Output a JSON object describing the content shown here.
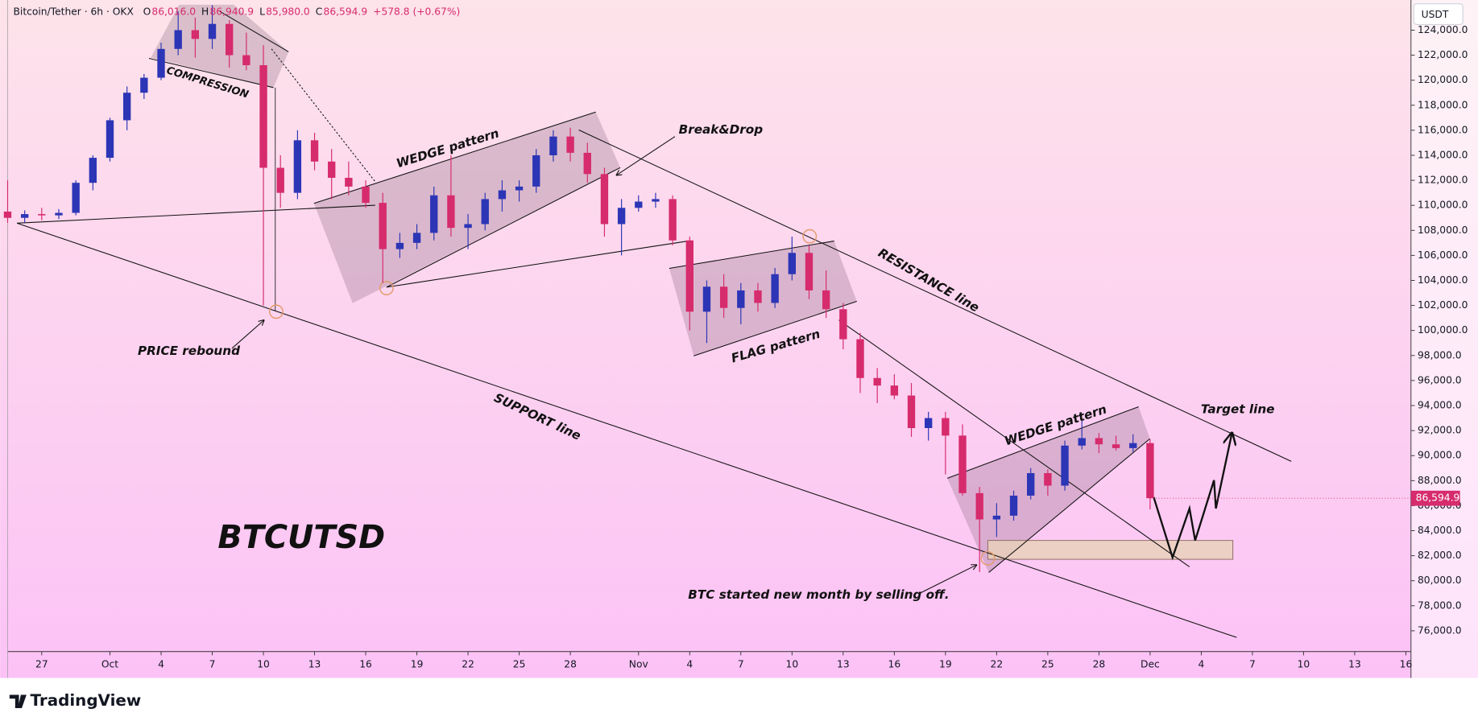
{
  "chart_data": {
    "type": "candlestick",
    "header": {
      "symbol": "Bitcoin/Tether · 6h · OKX",
      "fields": [
        {
          "key": "O",
          "value": "86,016.0"
        },
        {
          "key": "H",
          "value": "86,940.9"
        },
        {
          "key": "L",
          "value": "85,980.0"
        },
        {
          "key": "C",
          "value": "86,594.9"
        }
      ],
      "change": "+578.8 (+0.67%)"
    },
    "currency": "USDT",
    "brand": "TradingView",
    "up_color": "#2c35b6",
    "down_color": "#d62b6c",
    "grid": false,
    "x": [
      -2,
      -1,
      0,
      1,
      2,
      3,
      4,
      5,
      6,
      7,
      8,
      9,
      10,
      11,
      12,
      13,
      14,
      15,
      16,
      17,
      18,
      19,
      20,
      21,
      22,
      23,
      24,
      25,
      26,
      27,
      28,
      29,
      30,
      31,
      32,
      33,
      34,
      35,
      36,
      37,
      38,
      39,
      40,
      41,
      42,
      43,
      44,
      45,
      46,
      47,
      48,
      49,
      50,
      51,
      52,
      53,
      54,
      55,
      56,
      57,
      58,
      59,
      60,
      61,
      62,
      63,
      64,
      65
    ],
    "open": [
      109500,
      109000,
      109300,
      109200,
      109400,
      111800,
      113800,
      116800,
      119000,
      120200,
      122500,
      124000,
      123300,
      124500,
      122000,
      121200,
      113000,
      111000,
      115200,
      113500,
      112200,
      111500,
      110200,
      106500,
      107000,
      107800,
      110800,
      108200,
      108500,
      110500,
      111200,
      111500,
      114000,
      115500,
      114200,
      112500,
      108500,
      109800,
      110300,
      110500,
      107200,
      101500,
      103500,
      101800,
      103200,
      102200,
      104500,
      106200,
      103200,
      101700,
      99300,
      96200,
      95600,
      94800,
      92200,
      93000,
      91600,
      87000,
      84900,
      85200,
      86800,
      88600,
      87600,
      90800,
      91400,
      90900,
      90600,
      91000
    ],
    "high": [
      112000,
      109600,
      109800,
      109700,
      112000,
      114000,
      117000,
      119500,
      120500,
      123000,
      125500,
      125000,
      126000,
      124800,
      123800,
      122800,
      114000,
      116000,
      115800,
      114500,
      113500,
      112000,
      111000,
      107800,
      108500,
      111500,
      114000,
      109300,
      111000,
      112000,
      112000,
      114500,
      116000,
      116200,
      115000,
      113000,
      110500,
      110800,
      111000,
      110800,
      107500,
      104000,
      104500,
      103800,
      103800,
      105000,
      107500,
      106800,
      104800,
      102200,
      99800,
      97000,
      96500,
      95800,
      93500,
      93500,
      92500,
      87500,
      86200,
      87200,
      89000,
      88900,
      91200,
      92800,
      91800,
      91600,
      91700,
      91300
    ],
    "low": [
      108600,
      108600,
      108800,
      108900,
      109200,
      111200,
      113500,
      116000,
      118500,
      120000,
      122000,
      121800,
      122500,
      121000,
      120800,
      102000,
      109800,
      110500,
      112800,
      110500,
      110800,
      109800,
      103800,
      105800,
      106500,
      107200,
      107500,
      106500,
      108000,
      109500,
      110300,
      111000,
      113500,
      113500,
      111800,
      107500,
      106000,
      109500,
      109800,
      106800,
      100000,
      99000,
      101000,
      100500,
      101500,
      101800,
      104000,
      102500,
      101000,
      98500,
      95000,
      94200,
      94500,
      91500,
      91200,
      88500,
      86800,
      80700,
      83500,
      84800,
      86500,
      86800,
      87200,
      90500,
      90200,
      90400,
      90300,
      85700
    ],
    "close": [
      109000,
      109300,
      109200,
      109400,
      111800,
      113800,
      116800,
      119000,
      120200,
      122500,
      124000,
      123300,
      124500,
      122000,
      121200,
      113000,
      111000,
      115200,
      113500,
      112200,
      111500,
      110200,
      106500,
      107000,
      107800,
      110800,
      108200,
      108500,
      110500,
      111200,
      111500,
      114000,
      115500,
      114200,
      112500,
      108500,
      109800,
      110300,
      110500,
      107200,
      101500,
      103500,
      101800,
      103200,
      102200,
      104500,
      106200,
      103200,
      101700,
      99300,
      96200,
      95600,
      94800,
      92200,
      93000,
      91600,
      87000,
      84900,
      85200,
      86800,
      88600,
      87600,
      90800,
      91400,
      90900,
      90600,
      91000,
      86594.9
    ],
    "last_price": {
      "value": 86594.9,
      "label": "86,594.9"
    },
    "xlim": [
      -2,
      80.3
    ],
    "xticks": [
      {
        "value": 0,
        "label": "27"
      },
      {
        "value": 4,
        "label": "Oct"
      },
      {
        "value": 7,
        "label": "4"
      },
      {
        "value": 10,
        "label": "7"
      },
      {
        "value": 13,
        "label": "10"
      },
      {
        "value": 16,
        "label": "13"
      },
      {
        "value": 19,
        "label": "16"
      },
      {
        "value": 22,
        "label": "19"
      },
      {
        "value": 25,
        "label": "22"
      },
      {
        "value": 28,
        "label": "25"
      },
      {
        "value": 31,
        "label": "28"
      },
      {
        "value": 35,
        "label": "Nov"
      },
      {
        "value": 38,
        "label": "4"
      },
      {
        "value": 41,
        "label": "7"
      },
      {
        "value": 44,
        "label": "10"
      },
      {
        "value": 47,
        "label": "13"
      },
      {
        "value": 50,
        "label": "16"
      },
      {
        "value": 53,
        "label": "19"
      },
      {
        "value": 56,
        "label": "22"
      },
      {
        "value": 59,
        "label": "25"
      },
      {
        "value": 62,
        "label": "28"
      },
      {
        "value": 65,
        "label": "Dec"
      },
      {
        "value": 68,
        "label": "4"
      },
      {
        "value": 71,
        "label": "7"
      },
      {
        "value": 74,
        "label": "10"
      },
      {
        "value": 77,
        "label": "13"
      },
      {
        "value": 80,
        "label": "16"
      }
    ],
    "ylim": [
      74340,
      126410
    ],
    "yticks": [
      {
        "value": 124000,
        "label": "124,000.0"
      },
      {
        "value": 122000,
        "label": "122,000.0"
      },
      {
        "value": 120000,
        "label": "120,000.0"
      },
      {
        "value": 118000,
        "label": "118,000.0"
      },
      {
        "value": 116000,
        "label": "116,000.0"
      },
      {
        "value": 114000,
        "label": "114,000.0"
      },
      {
        "value": 112000,
        "label": "112,000.0"
      },
      {
        "value": 110000,
        "label": "110,000.0"
      },
      {
        "value": 108000,
        "label": "108,000.0"
      },
      {
        "value": 106000,
        "label": "106,000.0"
      },
      {
        "value": 104000,
        "label": "104,000.0"
      },
      {
        "value": 102000,
        "label": "102,000.0"
      },
      {
        "value": 100000,
        "label": "100,000.0"
      },
      {
        "value": 98000,
        "label": "98,000.0"
      },
      {
        "value": 96000,
        "label": "96,000.0"
      },
      {
        "value": 94000,
        "label": "94,000.0"
      },
      {
        "value": 92000,
        "label": "92,000.0"
      },
      {
        "value": 90000,
        "label": "90,000.0"
      },
      {
        "value": 88000,
        "label": "88,000.0"
      },
      {
        "value": 86000,
        "label": "86,000.0"
      },
      {
        "value": 84000,
        "label": "84,000.0"
      },
      {
        "value": 82000,
        "label": "82,000.0"
      },
      {
        "value": 80000,
        "label": "80,000.0"
      },
      {
        "value": 78000,
        "label": "78,000.0"
      },
      {
        "value": 76000,
        "label": "76,000.0"
      }
    ],
    "annotations": [
      "COMPRESSION",
      "WEDGE pattern",
      "Break&Drop",
      "RESISTANCE line",
      "FLAG pattern",
      "PRICE rebound",
      "SUPPORT line",
      "WEDGE pattern",
      "Target line",
      "BTCUTSD",
      "BTC started new month by selling off."
    ]
  }
}
